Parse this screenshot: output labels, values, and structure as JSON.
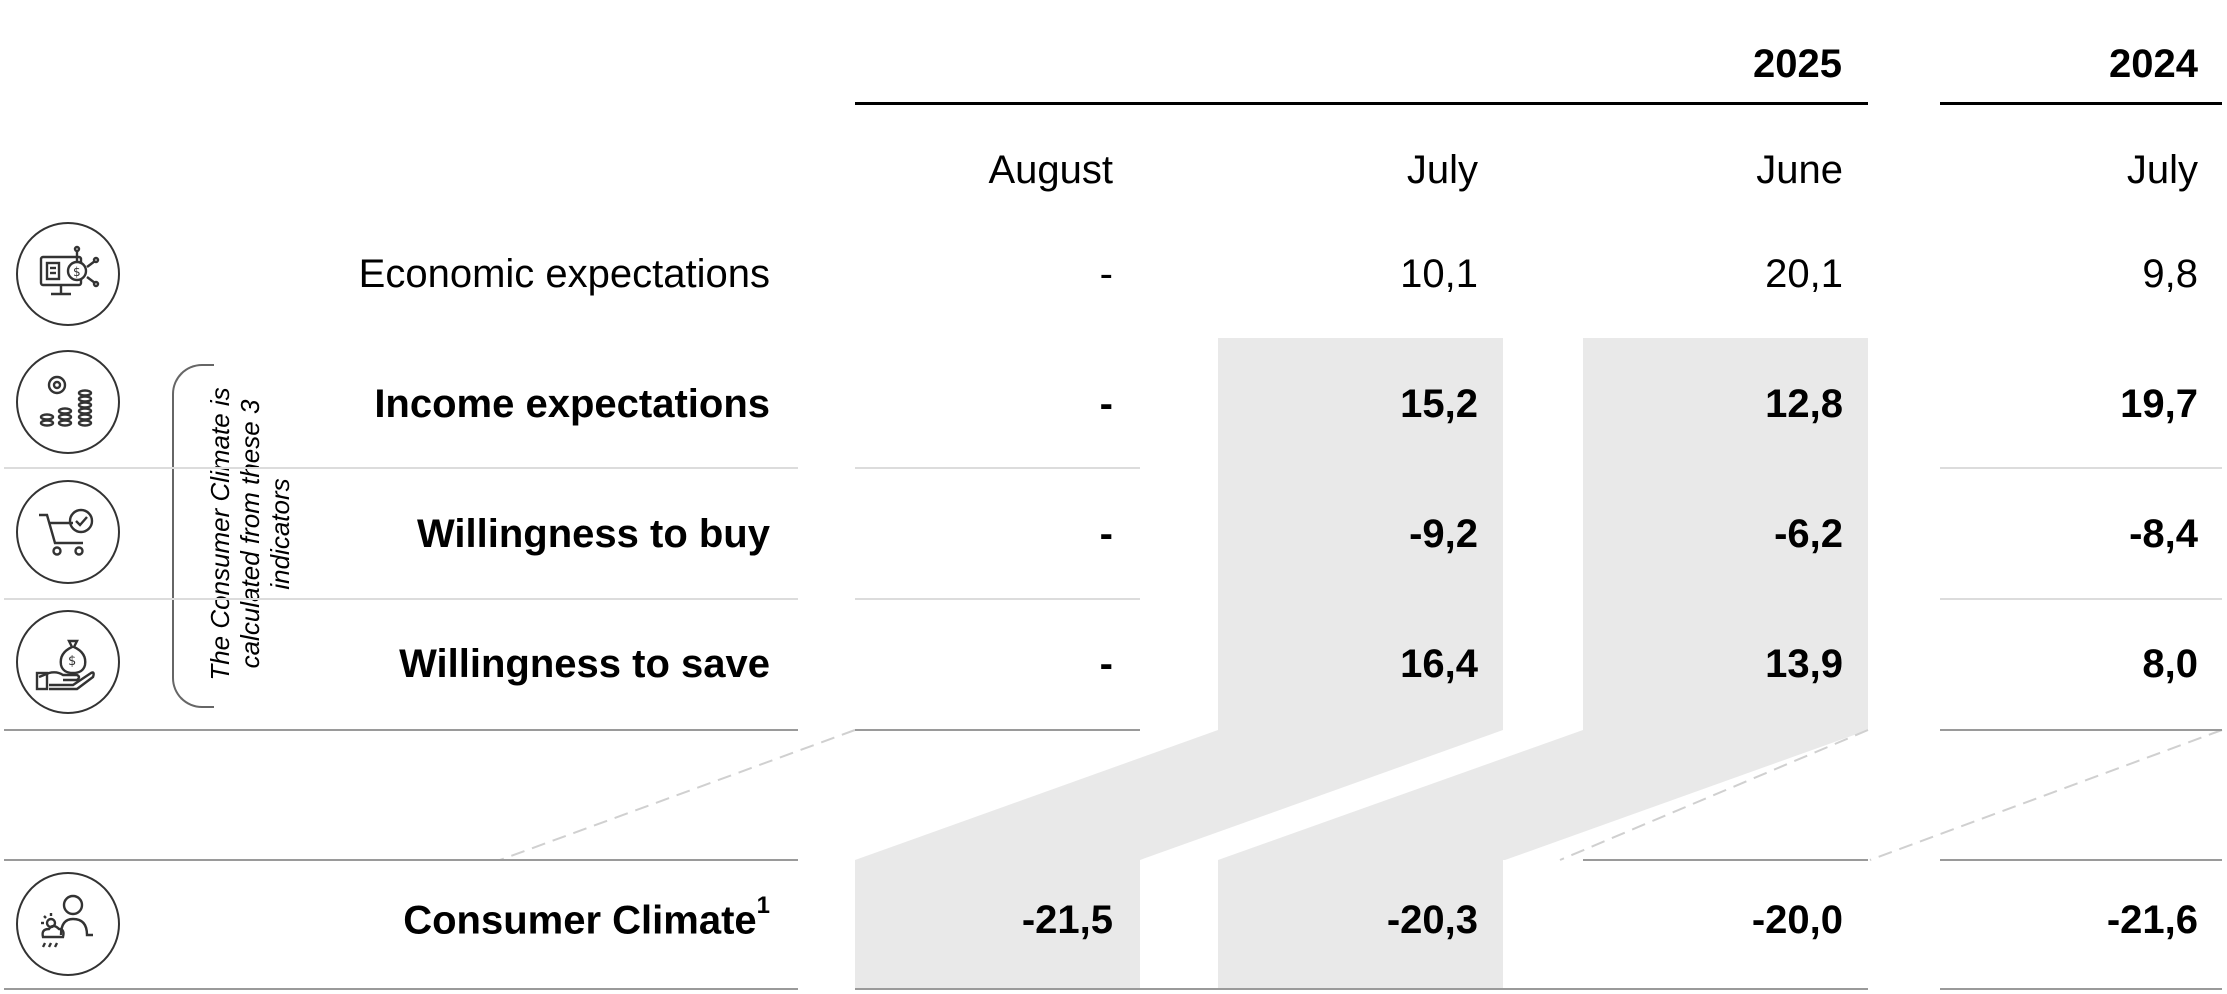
{
  "header": {
    "year_current": "2025",
    "year_previous": "2024",
    "months": [
      "August",
      "July",
      "June",
      "July"
    ]
  },
  "note": {
    "line1": "The Consumer Climate is",
    "line2": "calculated from these 3",
    "line3": "indicators"
  },
  "rows": [
    {
      "label": "Economic expectations",
      "icon": "computer-money-icon",
      "values": [
        "-",
        "10,1",
        "20,1",
        "9,8"
      ]
    },
    {
      "label": "Income expectations",
      "icon": "coins-stack-icon",
      "values": [
        "-",
        "15,2",
        "12,8",
        "19,7"
      ]
    },
    {
      "label": "Willingness to buy",
      "icon": "shopping-cart-check-icon",
      "values": [
        "-",
        "-9,2",
        "-6,2",
        "-8,4"
      ]
    },
    {
      "label": "Willingness to save",
      "icon": "hand-money-bag-icon",
      "values": [
        "-",
        "16,4",
        "13,9",
        "8,0"
      ]
    }
  ],
  "consumer_climate": {
    "label": "Consumer Climate",
    "footnote": "1",
    "icon": "person-weather-icon",
    "values": [
      "-21,5",
      "-20,3",
      "-20,0",
      "-21,6"
    ]
  }
}
